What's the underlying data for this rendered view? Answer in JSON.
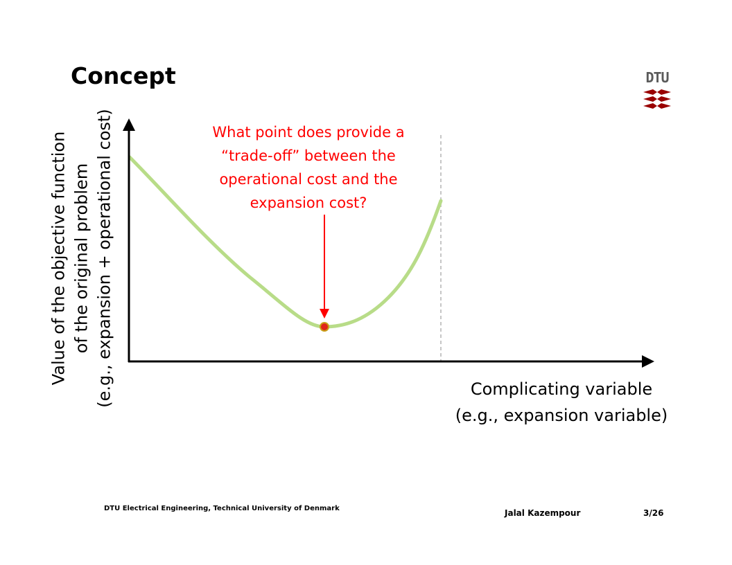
{
  "slide": {
    "title": "Concept",
    "logo_text": "DTU"
  },
  "diagram": {
    "question_lines": [
      "What point does provide a",
      "“trade-off” between the",
      "operational cost and the",
      "expansion cost?"
    ],
    "x_axis_label_lines": [
      "Complicating variable",
      "(e.g., expansion variable)"
    ],
    "y_axis_label_lines": [
      "Value of the objective function",
      "of the original problem",
      "(e.g., expansion + operational cost)"
    ],
    "colors": {
      "curve": "#b8dc88",
      "axis": "#000000",
      "question": "#ff0000",
      "arrow": "#ff0000",
      "optimum_point_fill": "#e0261b",
      "optimum_point_stroke": "#c8a019",
      "boundary_line": "#b3b3b3",
      "logo_red": "#990000",
      "logo_text": "#5a5a5a"
    }
  },
  "footer": {
    "institution": "DTU Electrical Engineering, Technical University of Denmark",
    "author": "Jalal Kazempour",
    "page": "3/26"
  }
}
